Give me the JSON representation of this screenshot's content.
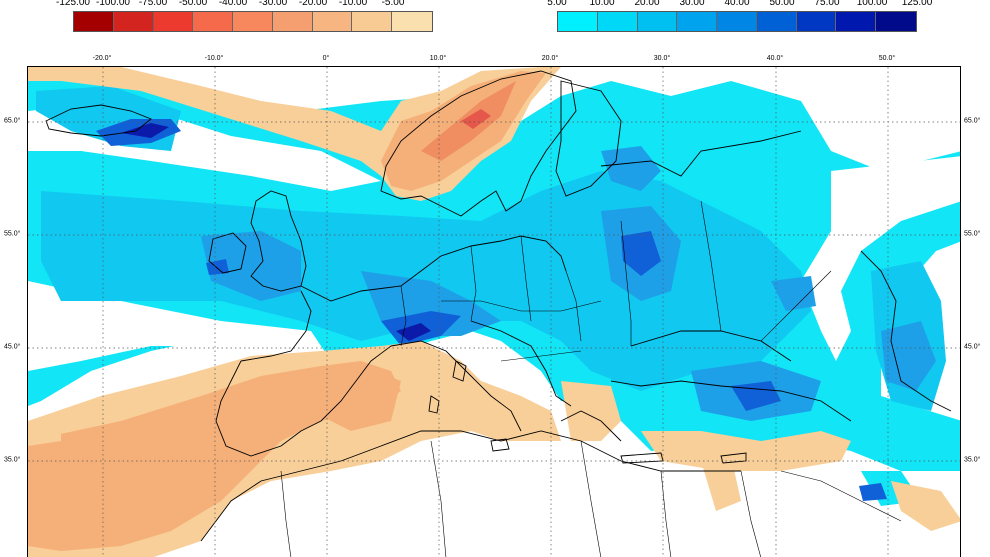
{
  "legend_negative": {
    "labels": [
      "-125.00",
      "-100.00",
      "-75.00",
      "-50.00",
      "-40.00",
      "-30.00",
      "-20.00",
      "-10.00",
      "-5.00"
    ],
    "colors": [
      "#a50000",
      "#d42420",
      "#ec3b2e",
      "#f56a4a",
      "#f7885e",
      "#f59e6f",
      "#f7b581",
      "#f8ca94",
      "#fae0ae"
    ]
  },
  "legend_positive": {
    "labels": [
      "5.00",
      "10.00",
      "20.00",
      "30.00",
      "40.00",
      "50.00",
      "75.00",
      "100.00",
      "125.00"
    ],
    "colors": [
      "#00f0ff",
      "#00d8f8",
      "#00c0f2",
      "#00a4ee",
      "#0086e4",
      "#0060d6",
      "#0038c4",
      "#0018ad",
      "#000a8a"
    ]
  },
  "axes": {
    "lon_ticks": [
      "-20.0°",
      "-10.0°",
      "0°",
      "10.0°",
      "20.0°",
      "30.0°",
      "40.0°",
      "50.0°"
    ],
    "lat_ticks": [
      "65.0°",
      "55.0°",
      "45.0°",
      "35.0°"
    ]
  },
  "colors": {
    "cyan": "#11e5f6",
    "light_blue": "#10c8f0",
    "mid_blue": "#1ea0e8",
    "deep_blue": "#1060d8",
    "dark_blue": "#0b1aa8",
    "sand": "#f8cf98",
    "peach": "#f5b07a",
    "salmon": "#f08e62",
    "red": "#e4574a",
    "grid": "#555555",
    "coast": "#000000"
  }
}
